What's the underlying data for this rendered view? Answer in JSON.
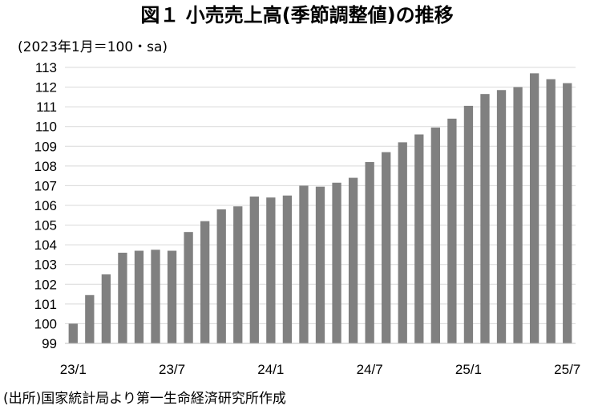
{
  "chart_data": {
    "type": "bar",
    "title": "図１ 小売売上高(季節調整値)の推移",
    "ylabel": "(2023年1月＝100・sa)",
    "xlabel": "",
    "ylim": [
      99,
      113
    ],
    "yticks": [
      99,
      100,
      101,
      102,
      103,
      104,
      105,
      106,
      107,
      108,
      109,
      110,
      111,
      112,
      113
    ],
    "categories": [
      "23/1",
      "23/2",
      "23/3",
      "23/4",
      "23/5",
      "23/6",
      "23/7",
      "23/8",
      "23/9",
      "23/10",
      "23/11",
      "23/12",
      "24/1",
      "24/2",
      "24/3",
      "24/4",
      "24/5",
      "24/6",
      "24/7",
      "24/8",
      "24/9",
      "24/10",
      "24/11",
      "24/12",
      "25/1",
      "25/2",
      "25/3",
      "25/4",
      "25/5",
      "25/6",
      "25/7"
    ],
    "values": [
      100.0,
      101.45,
      102.5,
      103.6,
      103.7,
      103.75,
      103.7,
      104.65,
      105.2,
      105.8,
      105.95,
      106.45,
      106.4,
      106.5,
      107.0,
      106.95,
      107.15,
      107.4,
      108.2,
      108.7,
      109.2,
      109.6,
      109.95,
      110.4,
      111.05,
      111.65,
      111.85,
      112.0,
      112.7,
      112.4,
      112.2
    ],
    "xtick_labels": [
      "23/1",
      "23/7",
      "24/1",
      "24/7",
      "25/1",
      "25/7"
    ],
    "xtick_indices": [
      0,
      6,
      12,
      18,
      24,
      30
    ],
    "bar_color": "#808080",
    "grid": true,
    "legend": "none",
    "source": "(出所)国家統計局より第一生命経済研究所作成"
  }
}
